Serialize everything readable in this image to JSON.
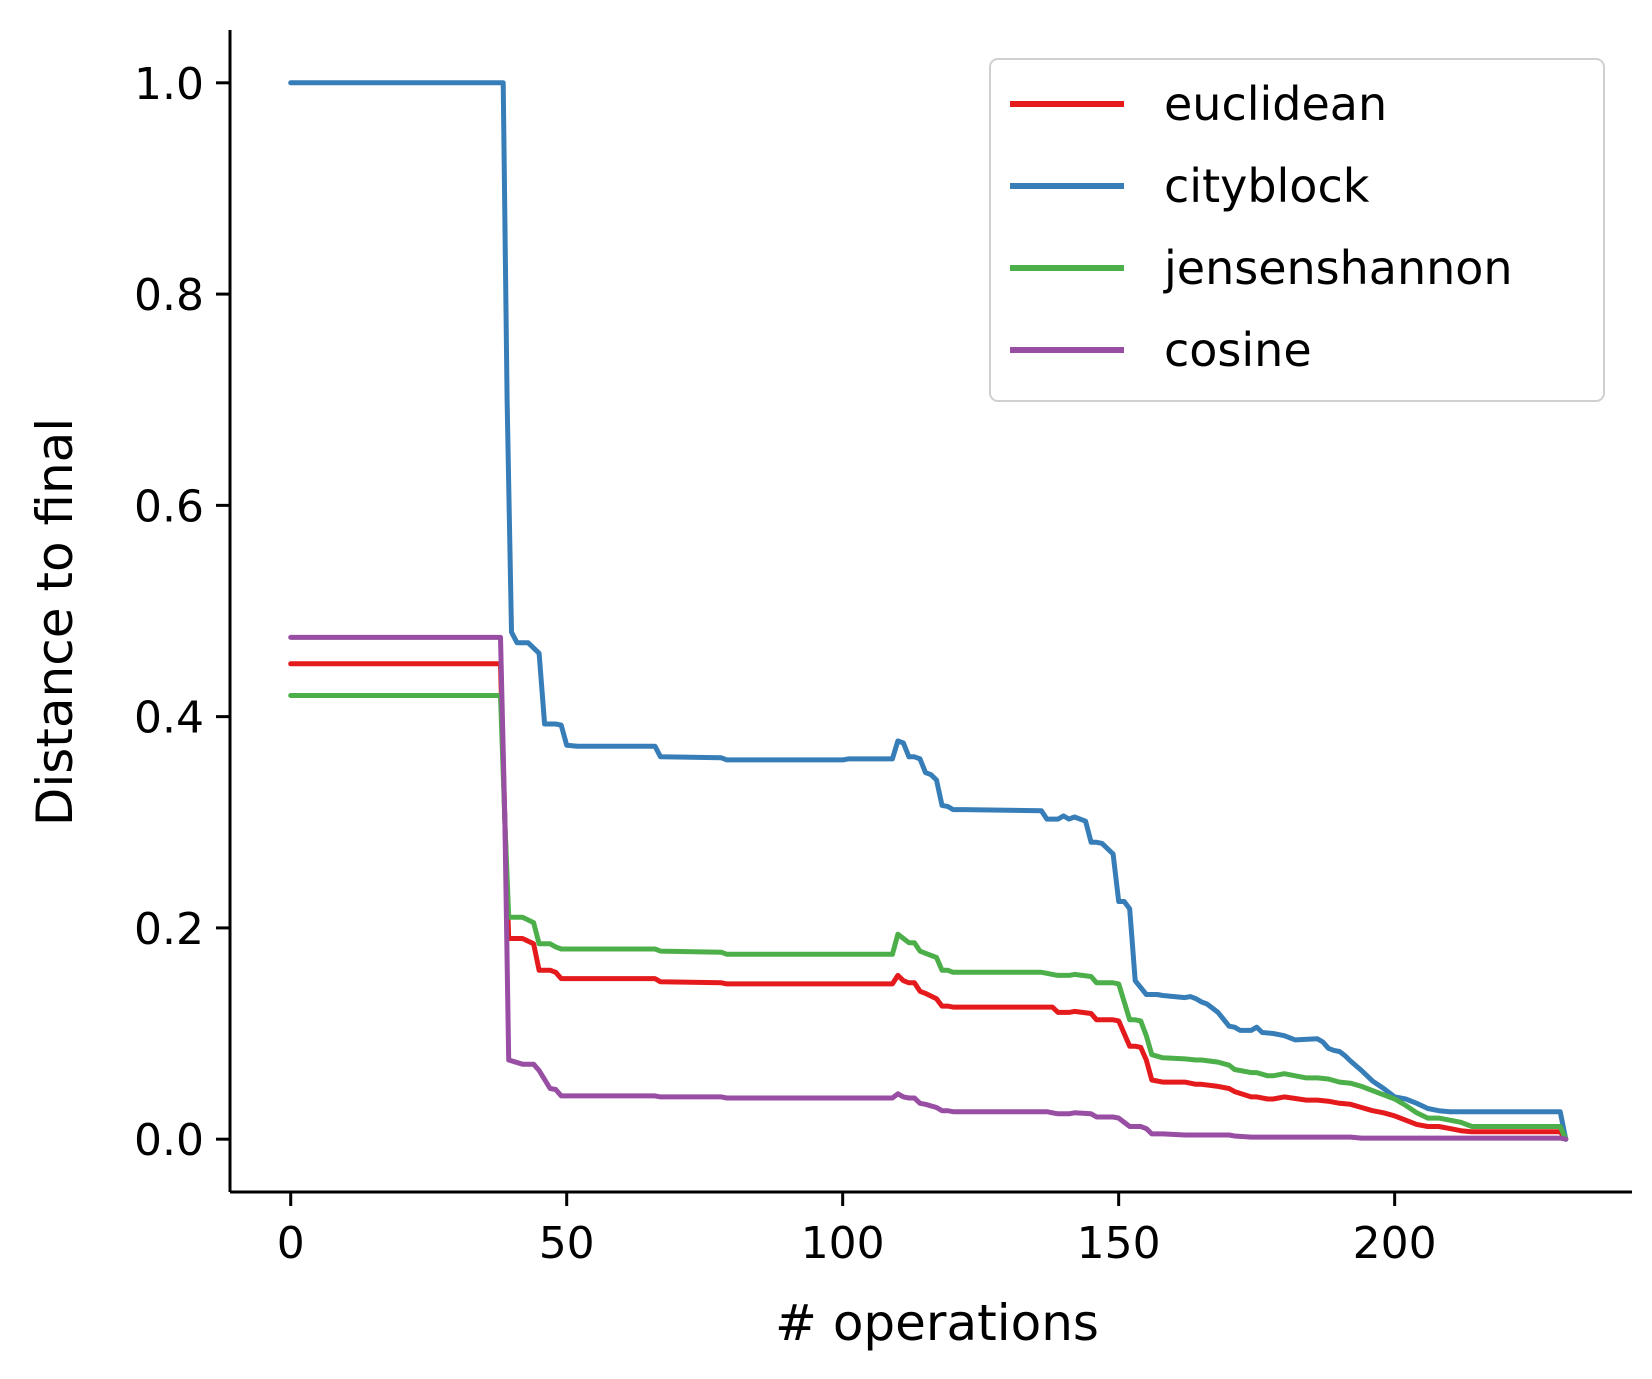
{
  "chart_data": {
    "type": "line",
    "title": "",
    "xlabel": "# operations",
    "ylabel": "Distance to final",
    "xlim": [
      -11,
      243
    ],
    "ylim": [
      -0.05,
      1.05
    ],
    "xticks": [
      0,
      50,
      100,
      150,
      200
    ],
    "yticks": [
      0.0,
      0.2,
      0.4,
      0.6,
      0.8,
      1.0
    ],
    "xtick_labels": [
      "0",
      "50",
      "100",
      "150",
      "200"
    ],
    "ytick_labels": [
      "0.0",
      "0.2",
      "0.4",
      "0.6",
      "0.8",
      "1.0"
    ],
    "grid": false,
    "legend": "top-right",
    "series": [
      {
        "name": "euclidean",
        "color": "#e41a1c",
        "x": [
          0,
          37.9,
          38.0,
          38.8,
          39.5,
          42,
          44,
          45,
          47,
          48,
          49,
          60,
          66,
          67,
          78,
          79,
          109,
          110,
          111,
          112,
          113,
          114,
          115,
          117,
          118,
          119,
          120,
          138,
          139,
          141,
          142,
          145,
          146,
          149,
          150,
          152,
          153,
          154,
          155,
          156,
          158,
          162,
          164,
          165,
          168,
          170,
          171,
          174,
          175,
          177,
          178,
          180,
          184,
          186,
          188,
          190,
          192,
          194,
          196,
          198,
          200,
          202,
          204,
          206,
          208,
          210,
          212,
          214,
          230,
          231
        ],
        "y": [
          0.45,
          0.45,
          0.45,
          0.3,
          0.19,
          0.19,
          0.185,
          0.16,
          0.16,
          0.158,
          0.152,
          0.152,
          0.152,
          0.149,
          0.148,
          0.147,
          0.147,
          0.155,
          0.15,
          0.148,
          0.148,
          0.14,
          0.138,
          0.133,
          0.126,
          0.126,
          0.125,
          0.125,
          0.12,
          0.12,
          0.121,
          0.119,
          0.113,
          0.113,
          0.112,
          0.088,
          0.088,
          0.087,
          0.075,
          0.056,
          0.054,
          0.054,
          0.052,
          0.052,
          0.05,
          0.048,
          0.045,
          0.04,
          0.04,
          0.038,
          0.038,
          0.04,
          0.037,
          0.037,
          0.036,
          0.034,
          0.033,
          0.03,
          0.027,
          0.025,
          0.022,
          0.018,
          0.014,
          0.012,
          0.012,
          0.01,
          0.008,
          0.007,
          0.007,
          0.0
        ]
      },
      {
        "name": "cityblock",
        "color": "#377eb8",
        "x": [
          0,
          38.5,
          39.2,
          40,
          41,
          43,
          45,
          46,
          48,
          49,
          50,
          52,
          60,
          66,
          67,
          78,
          79,
          100,
          101,
          109,
          110,
          111,
          112,
          113,
          114,
          115,
          116,
          117,
          118,
          119,
          120,
          122,
          136,
          137,
          139,
          140,
          141,
          142,
          143,
          144,
          145,
          146,
          147,
          149,
          150,
          151,
          152,
          153,
          155,
          156,
          157,
          158,
          162,
          163,
          164,
          165,
          166,
          168,
          170,
          171,
          172,
          174,
          175,
          176,
          178,
          179,
          180,
          182,
          186,
          187,
          188,
          189,
          190,
          191,
          192,
          194,
          196,
          198,
          200,
          202,
          204,
          206,
          208,
          210,
          212,
          214,
          230,
          231
        ],
        "y": [
          1.0,
          1.0,
          0.7,
          0.48,
          0.47,
          0.47,
          0.46,
          0.393,
          0.393,
          0.392,
          0.373,
          0.372,
          0.372,
          0.372,
          0.362,
          0.361,
          0.359,
          0.359,
          0.36,
          0.36,
          0.377,
          0.375,
          0.362,
          0.362,
          0.36,
          0.347,
          0.345,
          0.34,
          0.316,
          0.315,
          0.312,
          0.312,
          0.311,
          0.303,
          0.303,
          0.306,
          0.303,
          0.305,
          0.303,
          0.301,
          0.281,
          0.281,
          0.28,
          0.27,
          0.225,
          0.225,
          0.218,
          0.15,
          0.137,
          0.137,
          0.137,
          0.136,
          0.134,
          0.135,
          0.133,
          0.13,
          0.128,
          0.12,
          0.107,
          0.106,
          0.103,
          0.103,
          0.106,
          0.101,
          0.1,
          0.099,
          0.098,
          0.094,
          0.095,
          0.092,
          0.086,
          0.084,
          0.083,
          0.079,
          0.074,
          0.065,
          0.055,
          0.048,
          0.04,
          0.038,
          0.034,
          0.029,
          0.027,
          0.026,
          0.026,
          0.026,
          0.026,
          0.0
        ]
      },
      {
        "name": "jensenshannon",
        "color": "#4daf4a",
        "x": [
          0,
          37.9,
          38.0,
          38.8,
          39.5,
          42,
          44,
          45,
          47,
          48,
          49,
          60,
          66,
          67,
          78,
          79,
          109,
          110,
          111,
          112,
          113,
          114,
          115,
          117,
          118,
          119,
          120,
          136,
          137,
          138,
          139,
          141,
          142,
          145,
          146,
          149,
          150,
          152,
          153,
          154,
          155,
          156,
          158,
          162,
          164,
          165,
          168,
          170,
          171,
          174,
          175,
          177,
          178,
          180,
          184,
          186,
          188,
          190,
          192,
          194,
          196,
          198,
          200,
          202,
          204,
          206,
          208,
          210,
          212,
          214,
          230,
          231
        ],
        "y": [
          0.42,
          0.42,
          0.42,
          0.3,
          0.21,
          0.21,
          0.205,
          0.185,
          0.185,
          0.182,
          0.18,
          0.18,
          0.18,
          0.178,
          0.177,
          0.175,
          0.175,
          0.194,
          0.19,
          0.186,
          0.186,
          0.178,
          0.176,
          0.172,
          0.16,
          0.16,
          0.158,
          0.158,
          0.157,
          0.156,
          0.155,
          0.155,
          0.156,
          0.154,
          0.148,
          0.148,
          0.147,
          0.113,
          0.113,
          0.112,
          0.098,
          0.08,
          0.077,
          0.076,
          0.075,
          0.075,
          0.073,
          0.07,
          0.066,
          0.063,
          0.063,
          0.06,
          0.06,
          0.062,
          0.058,
          0.058,
          0.057,
          0.054,
          0.053,
          0.05,
          0.046,
          0.042,
          0.038,
          0.032,
          0.025,
          0.02,
          0.02,
          0.018,
          0.016,
          0.012,
          0.012,
          0.0
        ]
      },
      {
        "name": "cosine",
        "color": "#984ea3",
        "x": [
          0,
          37.9,
          38.0,
          38.8,
          39.5,
          42,
          44,
          45,
          47,
          48,
          49,
          60,
          66,
          67,
          78,
          79,
          109,
          110,
          111,
          112,
          113,
          114,
          115,
          117,
          118,
          119,
          120,
          136,
          137,
          138,
          139,
          141,
          142,
          145,
          146,
          149,
          150,
          152,
          153,
          154,
          155,
          156,
          158,
          162,
          164,
          165,
          168,
          170,
          171,
          174,
          175,
          177,
          178,
          180,
          184,
          186,
          188,
          190,
          192,
          194,
          196,
          198,
          200,
          202,
          204,
          206,
          208,
          210,
          212,
          214,
          230,
          231
        ],
        "y": [
          0.475,
          0.475,
          0.475,
          0.3,
          0.075,
          0.071,
          0.071,
          0.065,
          0.048,
          0.047,
          0.041,
          0.041,
          0.041,
          0.04,
          0.04,
          0.039,
          0.039,
          0.043,
          0.04,
          0.039,
          0.039,
          0.034,
          0.033,
          0.03,
          0.027,
          0.027,
          0.026,
          0.026,
          0.026,
          0.025,
          0.024,
          0.024,
          0.025,
          0.024,
          0.021,
          0.021,
          0.02,
          0.012,
          0.012,
          0.012,
          0.01,
          0.005,
          0.005,
          0.004,
          0.004,
          0.004,
          0.004,
          0.004,
          0.003,
          0.002,
          0.002,
          0.002,
          0.002,
          0.002,
          0.002,
          0.002,
          0.002,
          0.002,
          0.002,
          0.001,
          0.001,
          0.001,
          0.001,
          0.001,
          0.001,
          0.001,
          0.001,
          0.001,
          0.001,
          0.001,
          0.001,
          0.0
        ]
      }
    ]
  }
}
